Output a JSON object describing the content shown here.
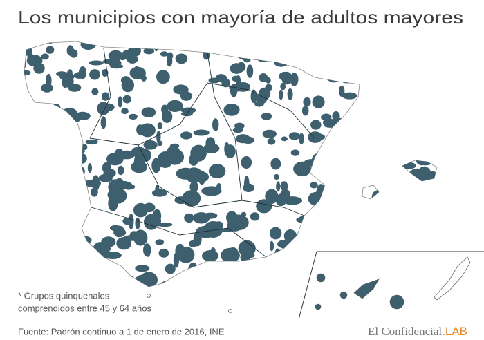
{
  "title": "Los municipios con mayoría de adultos mayores",
  "footnote": [
    "* Grupos quinquenales",
    "comprendidos entre 45 y 64 años"
  ],
  "source": "Fuente: Padrón continuo a 1 de enero de 2016, INE",
  "brand": {
    "name": "El Confidencial",
    "suffix": ".LAB"
  }
}
